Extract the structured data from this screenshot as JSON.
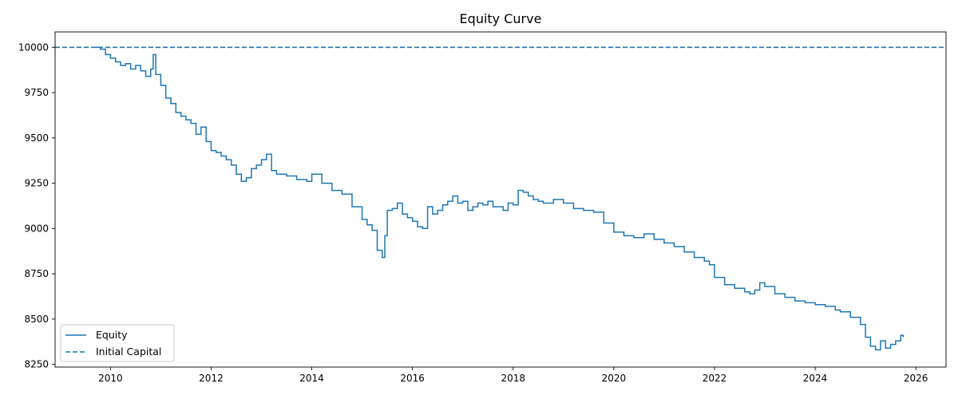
{
  "chart_data": {
    "type": "line",
    "title": "Equity Curve",
    "xlabel": "",
    "ylabel": "",
    "xlim": [
      2008.9,
      2026.6
    ],
    "ylim": [
      8235,
      10085
    ],
    "x_ticks": [
      2010,
      2012,
      2014,
      2016,
      2018,
      2020,
      2022,
      2024,
      2026
    ],
    "x_tick_labels": [
      "2010",
      "2012",
      "2014",
      "2016",
      "2018",
      "2020",
      "2022",
      "2024",
      "2026"
    ],
    "y_ticks": [
      8250,
      8500,
      8750,
      9000,
      9250,
      9500,
      9750,
      10000
    ],
    "y_tick_labels": [
      "8250",
      "8500",
      "8750",
      "9000",
      "9250",
      "9500",
      "9750",
      "10000"
    ],
    "grid": false,
    "legend_position": "lower-left",
    "series": [
      {
        "name": "Equity",
        "style": "solid",
        "color": "#1f77b4",
        "x": [
          2009.7,
          2009.8,
          2009.9,
          2010.0,
          2010.1,
          2010.2,
          2010.3,
          2010.4,
          2010.5,
          2010.6,
          2010.7,
          2010.8,
          2010.85,
          2010.9,
          2011.0,
          2011.1,
          2011.2,
          2011.3,
          2011.4,
          2011.5,
          2011.6,
          2011.7,
          2011.8,
          2011.9,
          2012.0,
          2012.1,
          2012.2,
          2012.3,
          2012.4,
          2012.5,
          2012.6,
          2012.7,
          2012.8,
          2012.9,
          2013.0,
          2013.1,
          2013.2,
          2013.3,
          2013.5,
          2013.7,
          2013.9,
          2014.0,
          2014.2,
          2014.4,
          2014.6,
          2014.8,
          2015.0,
          2015.1,
          2015.2,
          2015.3,
          2015.4,
          2015.45,
          2015.5,
          2015.6,
          2015.7,
          2015.8,
          2015.9,
          2016.0,
          2016.1,
          2016.2,
          2016.3,
          2016.4,
          2016.5,
          2016.6,
          2016.7,
          2016.8,
          2016.9,
          2017.0,
          2017.1,
          2017.2,
          2017.3,
          2017.4,
          2017.5,
          2017.6,
          2017.8,
          2017.9,
          2018.0,
          2018.1,
          2018.2,
          2018.3,
          2018.4,
          2018.5,
          2018.6,
          2018.8,
          2019.0,
          2019.2,
          2019.4,
          2019.6,
          2019.8,
          2020.0,
          2020.2,
          2020.4,
          2020.5,
          2020.6,
          2020.8,
          2021.0,
          2021.2,
          2021.4,
          2021.6,
          2021.8,
          2021.9,
          2022.0,
          2022.2,
          2022.4,
          2022.6,
          2022.7,
          2022.8,
          2022.9,
          2023.0,
          2023.2,
          2023.4,
          2023.6,
          2023.8,
          2024.0,
          2024.2,
          2024.4,
          2024.5,
          2024.7,
          2024.9,
          2025.0,
          2025.1,
          2025.2,
          2025.3,
          2025.4,
          2025.5,
          2025.6,
          2025.7,
          2025.75
        ],
        "y": [
          10000,
          9990,
          9960,
          9940,
          9920,
          9900,
          9910,
          9880,
          9900,
          9870,
          9840,
          9880,
          9960,
          9850,
          9790,
          9720,
          9690,
          9640,
          9620,
          9600,
          9580,
          9520,
          9560,
          9480,
          9430,
          9420,
          9400,
          9380,
          9350,
          9300,
          9260,
          9280,
          9330,
          9350,
          9380,
          9410,
          9320,
          9300,
          9290,
          9270,
          9260,
          9300,
          9250,
          9210,
          9190,
          9120,
          9050,
          9020,
          8990,
          8880,
          8840,
          8960,
          9100,
          9110,
          9140,
          9080,
          9060,
          9040,
          9010,
          9000,
          9120,
          9080,
          9100,
          9130,
          9150,
          9180,
          9140,
          9150,
          9100,
          9120,
          9140,
          9130,
          9150,
          9120,
          9100,
          9140,
          9130,
          9210,
          9200,
          9180,
          9160,
          9150,
          9140,
          9160,
          9140,
          9110,
          9100,
          9090,
          9030,
          8980,
          8960,
          8950,
          8950,
          8970,
          8940,
          8920,
          8900,
          8870,
          8840,
          8820,
          8800,
          8730,
          8690,
          8670,
          8650,
          8640,
          8660,
          8700,
          8680,
          8640,
          8620,
          8600,
          8590,
          8580,
          8570,
          8550,
          8540,
          8510,
          8470,
          8400,
          8350,
          8330,
          8380,
          8340,
          8360,
          8380,
          8410,
          8400
        ]
      },
      {
        "name": "Initial Capital",
        "style": "dashed",
        "color": "#1f77b4",
        "y": 10000
      }
    ]
  }
}
